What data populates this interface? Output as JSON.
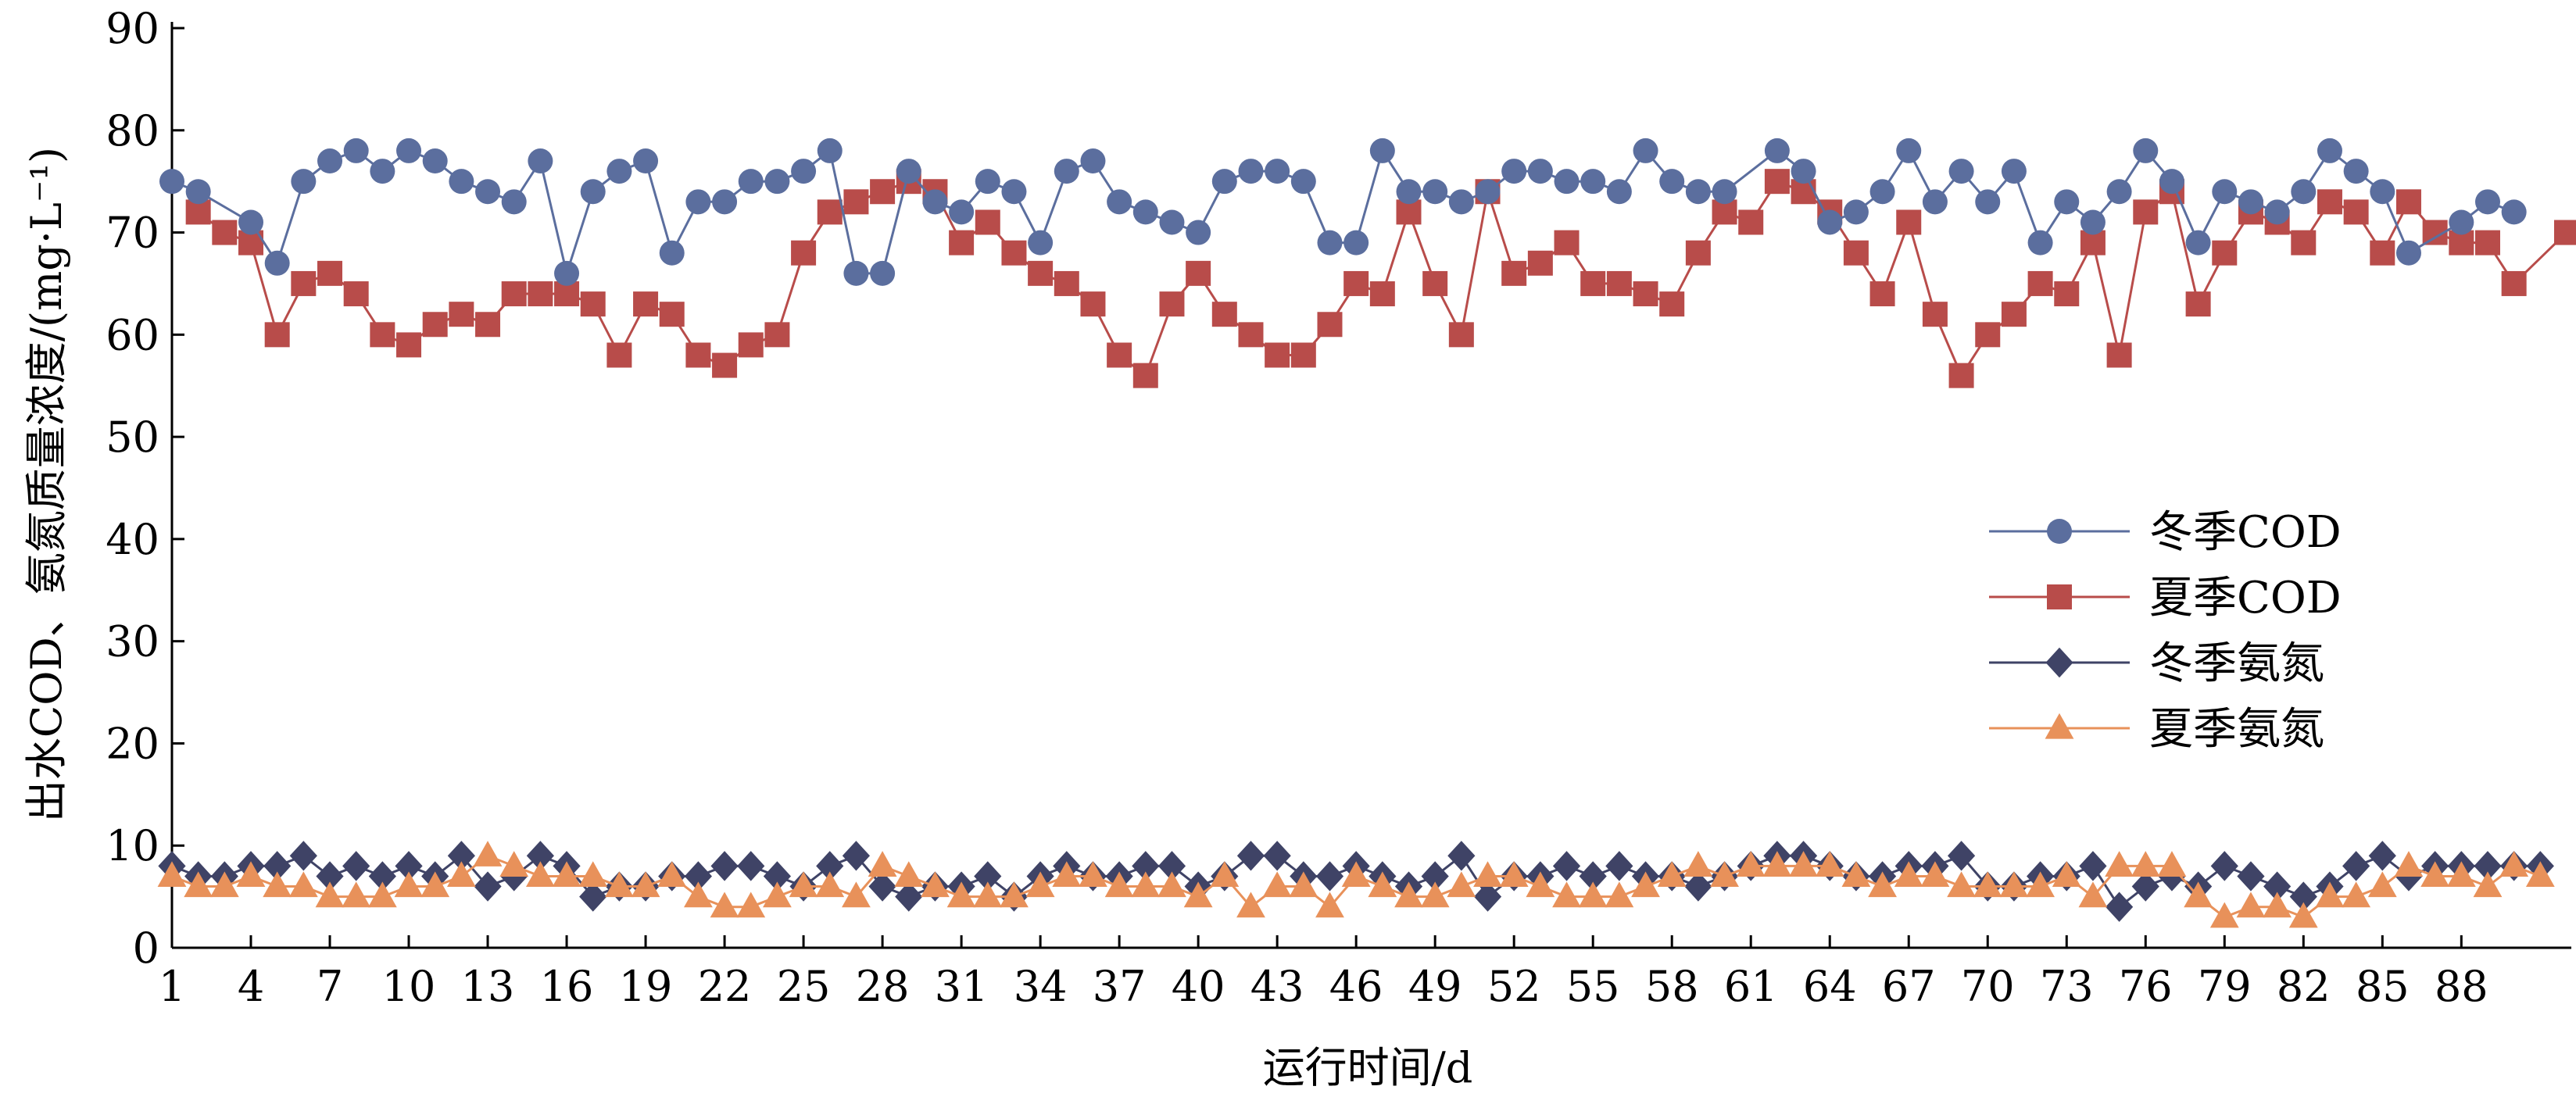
{
  "chart_data": {
    "type": "line",
    "title": "",
    "xlabel": "运行时间/d",
    "ylabel": "出水COD、氨氮质量浓度/(mg·L⁻¹)",
    "xlim": [
      1,
      92
    ],
    "ylim": [
      0,
      90
    ],
    "yticks": [
      0,
      10,
      20,
      30,
      40,
      50,
      60,
      70,
      80,
      90
    ],
    "xticks": [
      1,
      4,
      7,
      10,
      13,
      16,
      19,
      22,
      25,
      28,
      31,
      34,
      37,
      40,
      43,
      46,
      49,
      52,
      55,
      58,
      61,
      64,
      67,
      70,
      73,
      76,
      79,
      82,
      85,
      88
    ],
    "grid": false,
    "legend_position": "right",
    "series": [
      {
        "name": "冬季COD",
        "color": "#5b6e9e",
        "marker": "circle",
        "x": [
          1,
          2,
          4,
          5,
          6,
          7,
          8,
          9,
          10,
          11,
          12,
          13,
          14,
          15,
          16,
          17,
          18,
          19,
          20,
          21,
          22,
          23,
          24,
          25,
          26,
          27,
          28,
          29,
          30,
          31,
          32,
          33,
          34,
          35,
          36,
          37,
          38,
          39,
          40,
          41,
          42,
          43,
          44,
          45,
          46,
          47,
          48,
          49,
          50,
          51,
          52,
          53,
          54,
          55,
          56,
          57,
          58,
          59,
          60,
          62,
          63,
          64,
          65,
          66,
          67,
          68,
          69,
          70,
          71,
          72,
          73,
          74,
          75,
          76,
          77,
          78,
          79,
          80,
          81,
          82,
          83,
          84,
          85,
          86,
          88,
          89,
          90
        ],
        "values": [
          75,
          74,
          71,
          67,
          75,
          77,
          78,
          76,
          78,
          77,
          75,
          74,
          73,
          77,
          66,
          74,
          76,
          77,
          68,
          73,
          73,
          75,
          75,
          76,
          78,
          66,
          66,
          76,
          73,
          72,
          75,
          74,
          69,
          76,
          77,
          73,
          72,
          71,
          70,
          75,
          76,
          76,
          75,
          69,
          69,
          78,
          74,
          74,
          73,
          74,
          76,
          76,
          75,
          75,
          74,
          78,
          75,
          74,
          74,
          78,
          76,
          71,
          72,
          74,
          78,
          73,
          76,
          73,
          76,
          69,
          73,
          71,
          74,
          78,
          75,
          69,
          74,
          73,
          72,
          74,
          78,
          76,
          74,
          68,
          71,
          73,
          72
        ]
      },
      {
        "name": "夏季COD",
        "color": "#b84c4a",
        "marker": "square",
        "x": [
          2,
          3,
          4,
          5,
          6,
          7,
          8,
          9,
          10,
          11,
          12,
          13,
          14,
          15,
          16,
          17,
          18,
          19,
          20,
          21,
          22,
          23,
          24,
          25,
          26,
          27,
          28,
          29,
          30,
          31,
          32,
          33,
          34,
          35,
          36,
          37,
          38,
          39,
          40,
          41,
          42,
          43,
          44,
          45,
          46,
          47,
          48,
          49,
          50,
          51,
          52,
          53,
          54,
          55,
          56,
          57,
          58,
          59,
          60,
          61,
          62,
          63,
          64,
          65,
          66,
          67,
          68,
          69,
          70,
          71,
          72,
          73,
          74,
          75,
          76,
          77,
          78,
          79,
          80,
          81,
          82,
          83,
          84,
          85,
          86,
          87,
          88,
          89,
          90,
          92
        ],
        "values": [
          72,
          70,
          69,
          60,
          65,
          66,
          64,
          60,
          59,
          61,
          62,
          61,
          64,
          64,
          64,
          63,
          58,
          63,
          62,
          58,
          57,
          59,
          60,
          68,
          72,
          73,
          74,
          75,
          74,
          69,
          71,
          68,
          66,
          65,
          63,
          58,
          56,
          63,
          66,
          62,
          60,
          58,
          58,
          61,
          65,
          64,
          72,
          65,
          60,
          74,
          66,
          67,
          69,
          65,
          65,
          64,
          63,
          68,
          72,
          71,
          75,
          74,
          72,
          68,
          64,
          71,
          62,
          56,
          60,
          62,
          65,
          64,
          69,
          58,
          72,
          74,
          63,
          68,
          72,
          71,
          69,
          73,
          72,
          68,
          73,
          70,
          69,
          69,
          65,
          70
        ]
      },
      {
        "name": "冬季氨氮",
        "color": "#3f4366",
        "marker": "diamond",
        "x": [
          1,
          2,
          3,
          4,
          5,
          6,
          7,
          8,
          9,
          10,
          11,
          12,
          13,
          14,
          15,
          16,
          17,
          18,
          19,
          20,
          21,
          22,
          23,
          24,
          25,
          26,
          27,
          28,
          29,
          30,
          31,
          32,
          33,
          34,
          35,
          36,
          37,
          38,
          39,
          40,
          41,
          42,
          43,
          44,
          45,
          46,
          47,
          48,
          49,
          50,
          51,
          52,
          53,
          54,
          55,
          56,
          57,
          58,
          59,
          60,
          61,
          62,
          63,
          64,
          65,
          66,
          67,
          68,
          69,
          70,
          71,
          72,
          73,
          74,
          75,
          76,
          77,
          78,
          79,
          80,
          81,
          82,
          83,
          84,
          85,
          86,
          87,
          88,
          89,
          90,
          91
        ],
        "values": [
          8,
          7,
          7,
          8,
          8,
          9,
          7,
          8,
          7,
          8,
          7,
          9,
          6,
          7,
          9,
          8,
          5,
          6,
          6,
          7,
          7,
          8,
          8,
          7,
          6,
          8,
          9,
          6,
          5,
          6,
          6,
          7,
          5,
          7,
          8,
          7,
          7,
          8,
          8,
          6,
          7,
          9,
          9,
          7,
          7,
          8,
          7,
          6,
          7,
          9,
          5,
          7,
          7,
          8,
          7,
          8,
          7,
          7,
          6,
          7,
          8,
          9,
          9,
          8,
          7,
          7,
          8,
          8,
          9,
          6,
          6,
          7,
          7,
          8,
          4,
          6,
          7,
          6,
          8,
          7,
          6,
          5,
          6,
          8,
          9,
          7,
          8,
          8,
          8,
          8,
          8
        ]
      },
      {
        "name": "夏季氨氮",
        "color": "#e8915a",
        "marker": "triangle",
        "x": [
          1,
          2,
          3,
          4,
          5,
          6,
          7,
          8,
          9,
          10,
          11,
          12,
          13,
          14,
          15,
          16,
          17,
          18,
          19,
          20,
          21,
          22,
          23,
          24,
          25,
          26,
          27,
          28,
          29,
          30,
          31,
          32,
          33,
          34,
          35,
          36,
          37,
          38,
          39,
          40,
          41,
          42,
          43,
          44,
          45,
          46,
          47,
          48,
          49,
          50,
          51,
          52,
          53,
          54,
          55,
          56,
          57,
          58,
          59,
          60,
          61,
          62,
          63,
          64,
          65,
          66,
          67,
          68,
          69,
          70,
          71,
          72,
          73,
          74,
          75,
          76,
          77,
          78,
          79,
          80,
          81,
          82,
          83,
          84,
          85,
          86,
          87,
          88,
          89,
          90,
          91
        ],
        "values": [
          7,
          6,
          6,
          7,
          6,
          6,
          5,
          5,
          5,
          6,
          6,
          7,
          9,
          8,
          7,
          7,
          7,
          6,
          6,
          7,
          5,
          4,
          4,
          5,
          6,
          6,
          5,
          8,
          7,
          6,
          5,
          5,
          5,
          6,
          7,
          7,
          6,
          6,
          6,
          5,
          7,
          4,
          6,
          6,
          4,
          7,
          6,
          5,
          5,
          6,
          7,
          7,
          6,
          5,
          5,
          5,
          6,
          7,
          8,
          7,
          8,
          8,
          8,
          8,
          7,
          6,
          7,
          7,
          6,
          6,
          6,
          6,
          7,
          5,
          8,
          8,
          8,
          5,
          3,
          4,
          4,
          3,
          5,
          5,
          6,
          8,
          7,
          7,
          6,
          8,
          7
        ]
      }
    ]
  }
}
